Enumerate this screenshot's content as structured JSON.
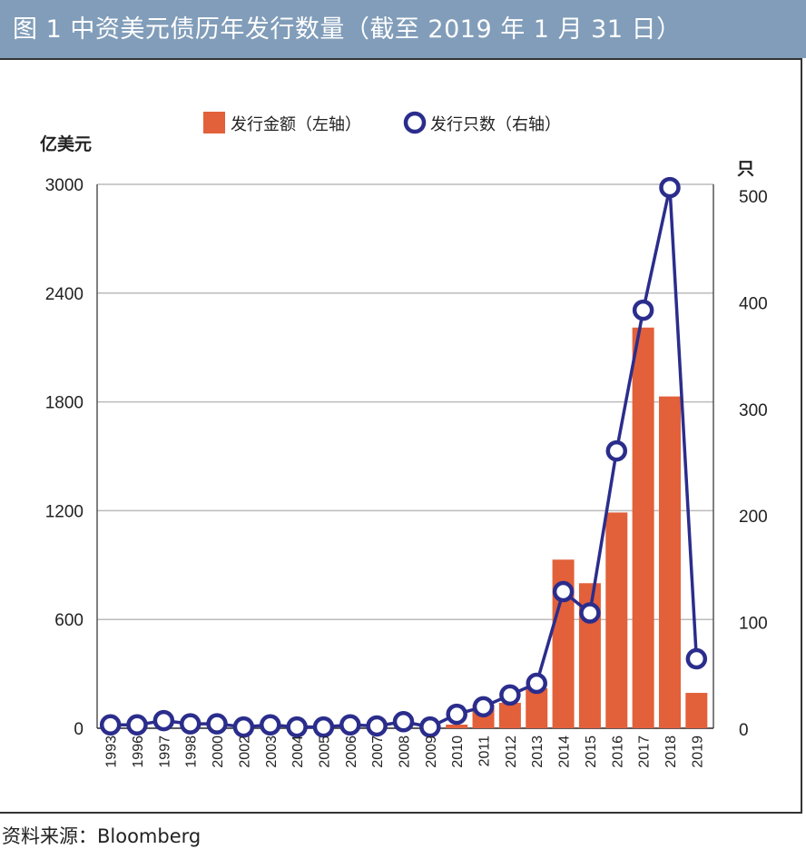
{
  "title": "图 1  中资美元债历年发行数量（截至 2019 年 1 月 31 日）",
  "source": "资料来源：Bloomberg",
  "chart_data": {
    "type": "bar+line",
    "title": "图 1  中资美元债历年发行数量（截至 2019 年 1 月 31 日）",
    "categories": [
      "1993",
      "1996",
      "1997",
      "1998",
      "2000",
      "2002",
      "2003",
      "2004",
      "2005",
      "2006",
      "2007",
      "2008",
      "2009",
      "2010",
      "2011",
      "2012",
      "2013",
      "2014",
      "2015",
      "2016",
      "2017",
      "2018",
      "2019"
    ],
    "series": [
      {
        "name": "发行金额（左轴）",
        "type": "bar",
        "axis": "left",
        "color": "#e2603a",
        "values": [
          0,
          0,
          0,
          0,
          0,
          0,
          0,
          0,
          0,
          0,
          0,
          0,
          0,
          20,
          130,
          140,
          220,
          930,
          800,
          1190,
          2210,
          1830,
          195
        ]
      },
      {
        "name": "发行只数（右轴）",
        "type": "line",
        "axis": "right",
        "color": "#2b2d8c",
        "values": [
          4,
          4,
          8,
          5,
          5,
          2,
          4,
          2,
          2,
          4,
          3,
          7,
          2,
          14,
          21,
          32,
          43,
          129,
          109,
          261,
          393,
          508,
          66
        ]
      }
    ],
    "left_axis": {
      "label": "亿美元",
      "ylim": [
        0,
        3000
      ],
      "ticks": [
        "0",
        "600",
        "1200",
        "1800",
        "2400",
        "3000"
      ]
    },
    "right_axis": {
      "label": "只",
      "ylim": [
        0,
        500
      ],
      "ticks": [
        "0",
        "100",
        "200",
        "300",
        "400",
        "500"
      ]
    },
    "legend_position": "top-center",
    "grid": true
  }
}
